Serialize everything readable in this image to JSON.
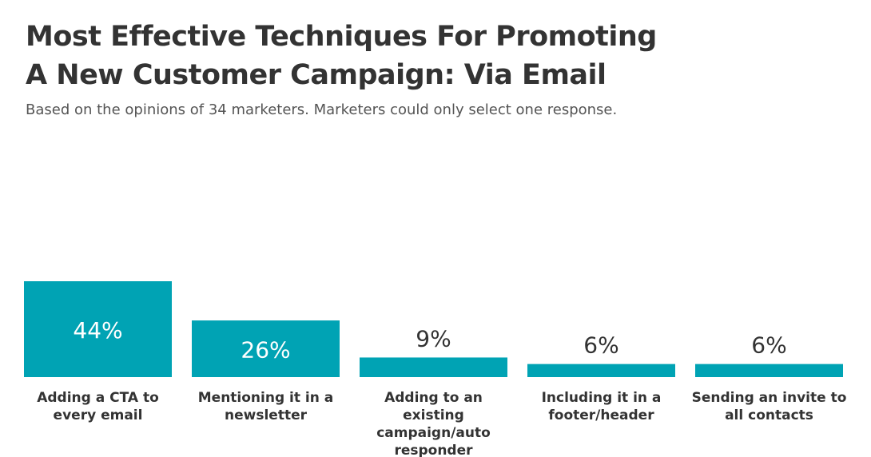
{
  "title_lines": [
    "Most Effective Techniques For Promoting",
    "A New Customer Campaign: Via Email"
  ],
  "subtitle": "Based on the opinions of 34 marketers. Marketers could only select one response.",
  "colors": {
    "bar": "#00a3b4",
    "label_inside": "#ffffff",
    "label_outside": "#333333",
    "category_text": "#333333"
  },
  "chart_data": {
    "type": "bar",
    "categories": [
      "Adding a CTA to every email",
      "Mentioning it in a newsletter",
      "Adding to an existing campaign/auto responder",
      "Including it in a footer/header",
      "Sending an invite to all contacts"
    ],
    "category_lines": [
      [
        "Adding a CTA to",
        "every email"
      ],
      [
        "Mentioning it in a",
        "newsletter"
      ],
      [
        "Adding to an",
        "existing",
        "campaign/auto",
        "responder"
      ],
      [
        "Including it in a",
        "footer/header"
      ],
      [
        "Sending an invite to",
        "all contacts"
      ]
    ],
    "values": [
      44,
      26,
      9,
      6,
      6
    ],
    "data_labels": [
      "44%",
      "26%",
      "9%",
      "6%",
      "6%"
    ],
    "unit": "%",
    "ylim": [
      0,
      44
    ],
    "grid": false,
    "legend": "none"
  }
}
